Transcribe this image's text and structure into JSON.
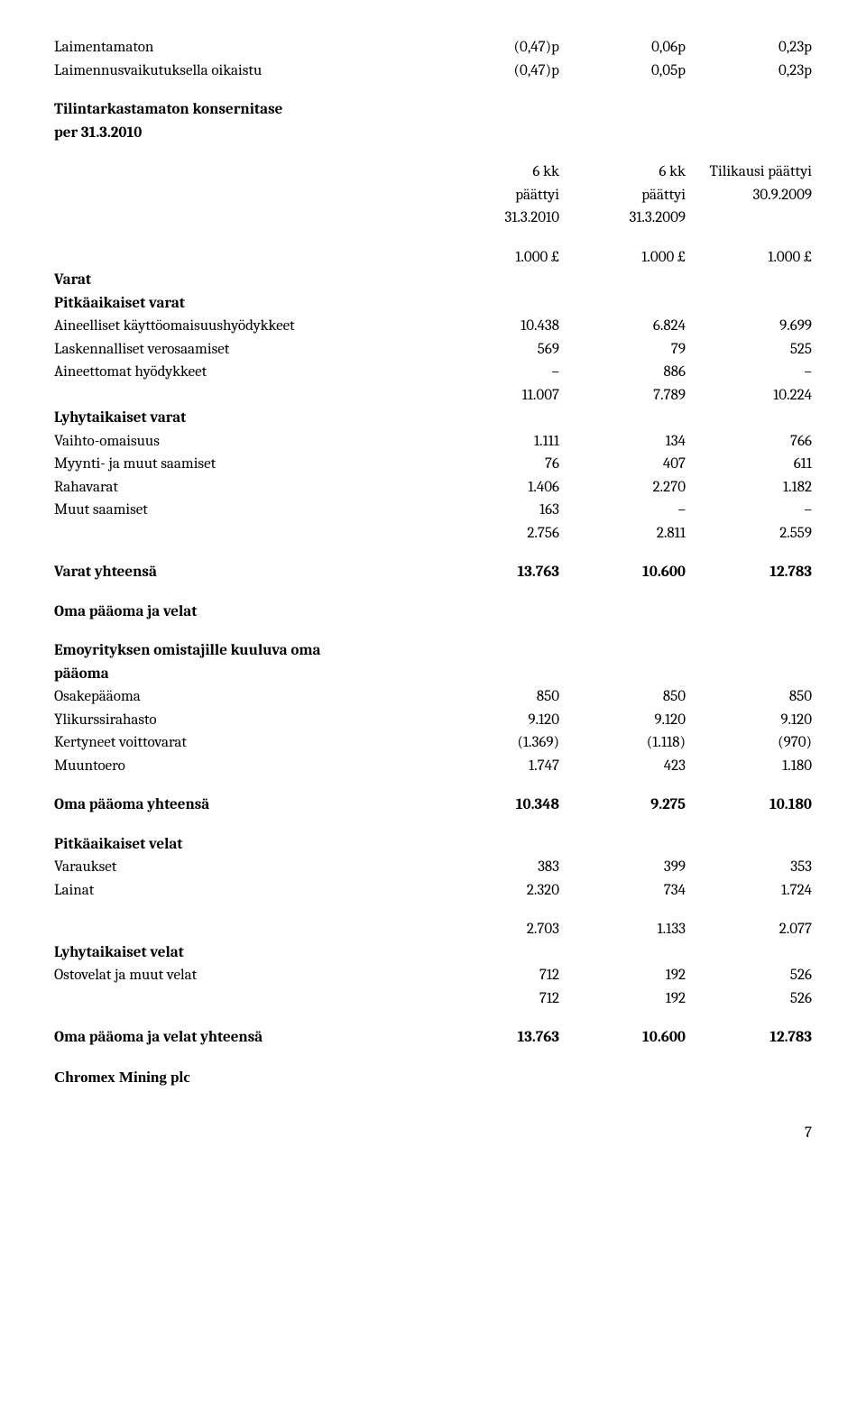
{
  "top_rows": [
    {
      "label": "Laimentamaton",
      "c1": "(0,47)p",
      "c2": "0,06p",
      "c3": "0,23p"
    },
    {
      "label": "Laimennusvaikutuksella oikaistu",
      "c1": "(0,47)p",
      "c2": "0,05p",
      "c3": "0,23p"
    }
  ],
  "section_title_1": "Tilintarkastamaton konsernitase",
  "section_title_2": "per 31.3.2010",
  "header_rows": [
    {
      "c1": "6 kk",
      "c2": "6 kk",
      "c3": "Tilikausi päättyi"
    },
    {
      "c1": "päättyi",
      "c2": "päättyi",
      "c3": "30.9.2009"
    },
    {
      "c1": "31.3.2010",
      "c2": "31.3.2009",
      "c3": ""
    }
  ],
  "units": {
    "c1": "1.000 £",
    "c2": "1.000 £",
    "c3": "1.000 £"
  },
  "varat_heading": "Varat",
  "pitkaaikaiset_varat_heading": "Pitkäaikaiset varat",
  "pitkaaikaiset_rows": [
    {
      "label": "Aineelliset käyttöomaisuushyödykkeet",
      "c1": "10.438",
      "c2": "6.824",
      "c3": "9.699"
    },
    {
      "label": "Laskennalliset verosaamiset",
      "c1": "569",
      "c2": "79",
      "c3": "525"
    },
    {
      "label": "Aineettomat hyödykkeet",
      "c1": "–",
      "c2": "886",
      "c3": "–"
    },
    {
      "label": "",
      "c1": "11.007",
      "c2": "7.789",
      "c3": "10.224"
    }
  ],
  "lyhytaikaiset_varat_heading": "Lyhytaikaiset varat",
  "lyhytaikaiset_rows": [
    {
      "label": "Vaihto-omaisuus",
      "c1": "1.111",
      "c2": "134",
      "c3": "766"
    },
    {
      "label": "Myynti- ja muut saamiset",
      "c1": "76",
      "c2": "407",
      "c3": "611"
    },
    {
      "label": "Rahavarat",
      "c1": "1.406",
      "c2": "2.270",
      "c3": "1.182"
    },
    {
      "label": "Muut saamiset",
      "c1": "163",
      "c2": "–",
      "c3": "–"
    },
    {
      "label": "",
      "c1": "2.756",
      "c2": "2.811",
      "c3": "2.559"
    }
  ],
  "varat_yhteensa": {
    "label": "Varat yhteensä",
    "c1": "13.763",
    "c2": "10.600",
    "c3": "12.783"
  },
  "oma_paaoma_ja_velat_heading": "Oma pääoma ja velat",
  "emo_heading_1": "Emoyrityksen omistajille kuuluva oma",
  "emo_heading_2": "pääoma",
  "emo_rows": [
    {
      "label": "Osakepääoma",
      "c1": "850",
      "c2": "850",
      "c3": "850"
    },
    {
      "label": "Ylikurssirahasto",
      "c1": "9.120",
      "c2": "9.120",
      "c3": "9.120"
    },
    {
      "label": "Kertyneet voittovarat",
      "c1": "(1.369)",
      "c2": "(1.118)",
      "c3": "(970)"
    },
    {
      "label": "Muuntoero",
      "c1": "1.747",
      "c2": "423",
      "c3": "1.180"
    }
  ],
  "oma_paaoma_yhteensa": {
    "label": "Oma pääoma yhteensä",
    "c1": "10.348",
    "c2": "9.275",
    "c3": "10.180"
  },
  "pitkaaikaiset_velat_heading": "Pitkäaikaiset velat",
  "pitkaaikaiset_velat_rows": [
    {
      "label": "Varaukset",
      "c1": "383",
      "c2": "399",
      "c3": "353"
    },
    {
      "label": "Lainat",
      "c1": "2.320",
      "c2": "734",
      "c3": "1.724"
    }
  ],
  "subtotal_row": {
    "c1": "2.703",
    "c2": "1.133",
    "c3": "2.077"
  },
  "lyhytaikaiset_velat_heading": "Lyhytaikaiset velat",
  "lyhytaikaiset_velat_rows": [
    {
      "label": "Ostovelat ja muut velat",
      "c1": "712",
      "c2": "192",
      "c3": "526"
    },
    {
      "label": "",
      "c1": "712",
      "c2": "192",
      "c3": "526"
    }
  ],
  "oma_paaoma_ja_velat_yhteensa": {
    "label": "Oma pääoma ja velat yhteensä",
    "c1": "13.763",
    "c2": "10.600",
    "c3": "12.783"
  },
  "company_name": "Chromex Mining plc",
  "page_number": "7"
}
